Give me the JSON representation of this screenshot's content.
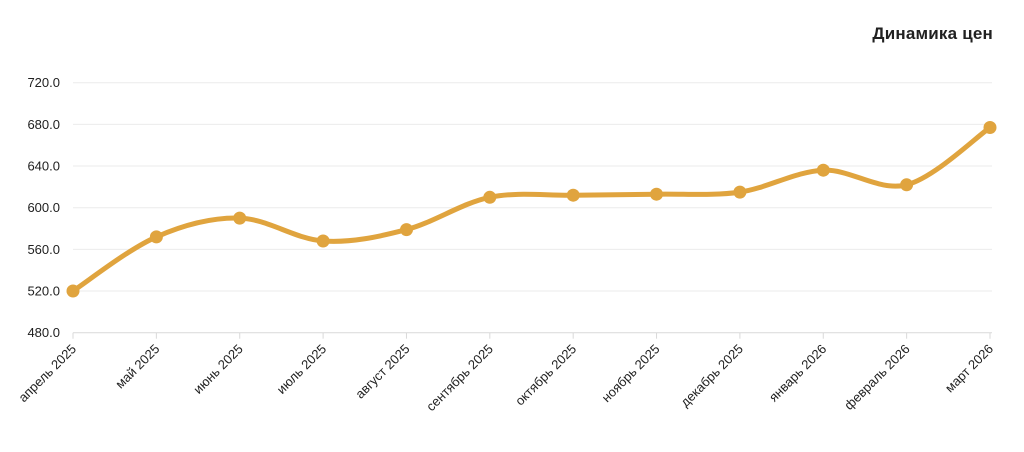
{
  "chart_data": {
    "type": "line",
    "title": "Динамика цен",
    "categories": [
      "апрель 2025",
      "май 2025",
      "июнь 2025",
      "июль 2025",
      "август 2025",
      "сентябрь 2025",
      "октябрь 2025",
      "ноябрь 2025",
      "декабрь 2025",
      "январь 2026",
      "февраль 2026",
      "март 2026"
    ],
    "values": [
      520,
      572,
      590,
      568,
      579,
      610,
      612,
      613,
      615,
      636,
      622,
      677
    ],
    "xlabel": "",
    "ylabel": "",
    "ylim": [
      480,
      720
    ],
    "y_ticks": [
      720,
      680,
      640,
      600,
      560,
      520,
      480
    ],
    "y_tick_labels": [
      "720.0",
      "680.0",
      "640.0",
      "600.0",
      "560.0",
      "520.0",
      "480.0"
    ],
    "grid": true,
    "legend": "none",
    "curve": "smooth",
    "colors": {
      "line": "#E0A43E",
      "point": "#E0A43E",
      "grid": "#EBEBEB",
      "axis": "#D9D9D9",
      "text": "#212121"
    }
  }
}
